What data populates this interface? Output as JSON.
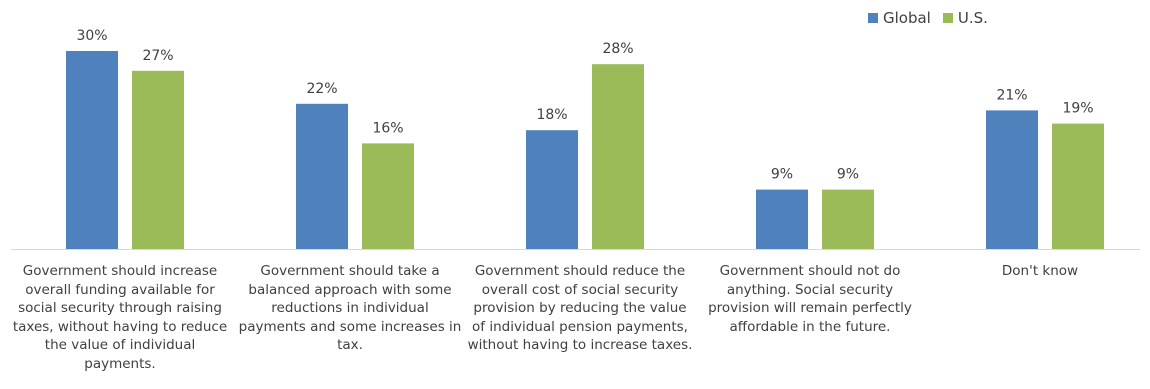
{
  "chart_data": {
    "type": "bar",
    "categories": [
      "Government should increase overall funding available for social security through raising taxes, without having to reduce the value of individual payments.",
      "Government should take a balanced approach with some reductions in individual payments and some increases in tax.",
      "Government should reduce the overall cost of social security provision by reducing the value of individual pension payments, without having to increase taxes.",
      "Government should not do anything. Social security provision will remain perfectly affordable in the future.",
      "Don't know"
    ],
    "series": [
      {
        "name": "Global",
        "color": "#4f81bd",
        "values": [
          30,
          22,
          18,
          9,
          21
        ],
        "labels": [
          "30%",
          "22%",
          "18%",
          "9%",
          "21%"
        ]
      },
      {
        "name": "U.S.",
        "color": "#9bbb59",
        "values": [
          27,
          16,
          28,
          9,
          19
        ],
        "labels": [
          "27%",
          "16%",
          "28%",
          "9%",
          "19%"
        ]
      }
    ],
    "title": "",
    "xlabel": "",
    "ylabel": "",
    "ylim": [
      0,
      30
    ],
    "grid": false,
    "legend": "top-right"
  }
}
